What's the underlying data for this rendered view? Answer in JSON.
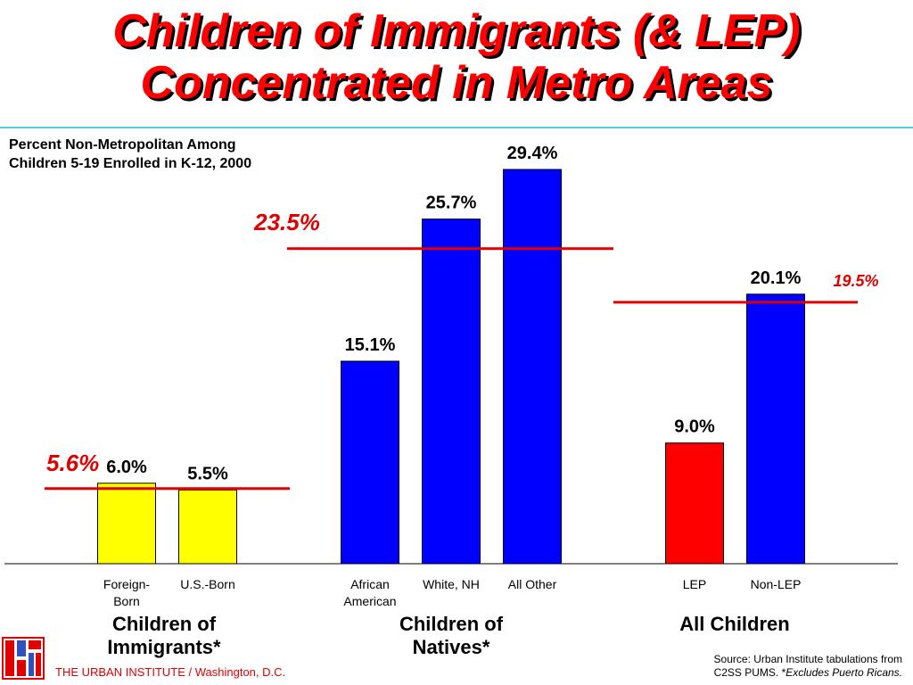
{
  "title_line1": "Children of Immigrants (& LEP)",
  "title_line2": "Concentrated in Metro Areas",
  "subtitle_line1": "Percent Non-Metropolitan Among",
  "subtitle_line2": "Children 5-19 Enrolled in K-12, 2000",
  "footer": "THE URBAN INSTITUTE / Washington, D.C.",
  "source_line1": "Source: Urban Institute tabulations from",
  "source_line2a": "C2SS PUMS.  *",
  "source_line2b": "Excludes Puerto Ricans.",
  "colors": {
    "title": "#ff0000",
    "yellow_bar": "#ffff00",
    "blue_bar": "#0000ff",
    "red_bar": "#ff0000",
    "ref_line": "#e00000",
    "rule": "#4fd1d9"
  },
  "chart_data": {
    "type": "bar",
    "title": "",
    "ylabel": "",
    "ylim": [
      0,
      30
    ],
    "groups": [
      {
        "label_lines": [
          "Children of",
          "Immigrants*"
        ],
        "average": 5.6,
        "average_label": "5.6%",
        "bars": [
          {
            "category_lines": [
              "Foreign-",
              "Born"
            ],
            "value": 6.0,
            "label": "6.0%",
            "color": "#ffff00"
          },
          {
            "category_lines": [
              "U.S.-Born"
            ],
            "value": 5.5,
            "label": "5.5%",
            "color": "#ffff00"
          }
        ]
      },
      {
        "label_lines": [
          "Children of",
          "Natives*"
        ],
        "average": 23.5,
        "average_label": "23.5%",
        "bars": [
          {
            "category_lines": [
              "African",
              "American"
            ],
            "value": 15.1,
            "label": "15.1%",
            "color": "#0000ff"
          },
          {
            "category_lines": [
              "White, NH"
            ],
            "value": 25.7,
            "label": "25.7%",
            "color": "#0000ff"
          },
          {
            "category_lines": [
              "All Other"
            ],
            "value": 29.4,
            "label": "29.4%",
            "color": "#0000ff"
          }
        ]
      },
      {
        "label_lines": [
          "All Children"
        ],
        "average": 19.5,
        "average_label": "19.5%",
        "bars": [
          {
            "category_lines": [
              "LEP"
            ],
            "value": 9.0,
            "label": "9.0%",
            "color": "#ff0000"
          },
          {
            "category_lines": [
              "Non-LEP"
            ],
            "value": 20.1,
            "label": "20.1%",
            "color": "#0000ff"
          }
        ]
      }
    ]
  }
}
